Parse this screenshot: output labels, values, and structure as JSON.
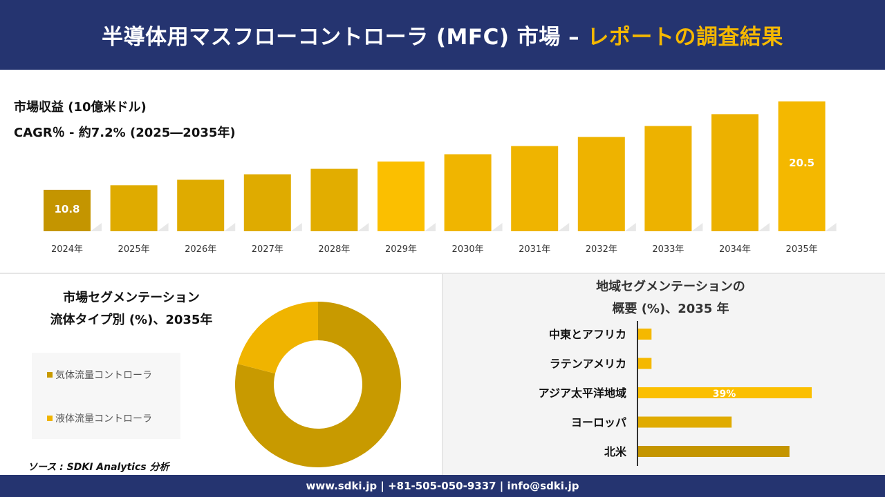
{
  "header": {
    "title_main": "半導体用マスフローコントローラ (MFC) 市場 –",
    "title_highlight": "レポートの調査結果"
  },
  "revenue": {
    "unit_label": "市場収益 (10億米ドル)",
    "cagr_label": "CAGR％ - 約7.2% (2025―2035年)"
  },
  "chart_data": [
    {
      "type": "bar",
      "categories": [
        "2024年",
        "2025年",
        "2026年",
        "2027年",
        "2028年",
        "2029年",
        "2030年",
        "2031年",
        "2032年",
        "2033年",
        "2034年",
        "2035年"
      ],
      "values": [
        10.8,
        11.3,
        11.9,
        12.5,
        13.1,
        13.9,
        14.7,
        15.6,
        16.6,
        17.8,
        19.1,
        20.5
      ],
      "data_labels": {
        "0": "10.8",
        "11": "20.5"
      },
      "colors": [
        "#c49500",
        "#dfab00",
        "#dfab00",
        "#dfab00",
        "#e2ad00",
        "#fbbf00",
        "#f0b500",
        "#efb400",
        "#eeb300",
        "#edb200",
        "#ecb100",
        "#f4b800"
      ]
    },
    {
      "type": "pie",
      "title_line1": "市場セグメンテーション",
      "title_line2": "流体タイプ別 (%)、2035年",
      "categories": [
        "気体流量コントローラ",
        "液体流量コントローラ"
      ],
      "values": [
        79,
        21
      ],
      "colors": [
        "#c89a00",
        "#f0b400"
      ]
    },
    {
      "type": "bar",
      "orientation": "horizontal",
      "title_line1": "地域セグメンテーションの",
      "title_line2": "概要 (%)、2035 年",
      "categories": [
        "中東とアフリカ",
        "ラテンアメリカ",
        "アジア太平洋地域",
        "ヨーロッパ",
        "北米"
      ],
      "values": [
        3,
        3,
        39,
        21,
        34
      ],
      "data_labels": {
        "2": "39%"
      },
      "colors": [
        "#f5b800",
        "#f5b800",
        "#fbbf00",
        "#e0ab00",
        "#c49500"
      ]
    }
  ],
  "source": "ソース : SDKI Analytics 分析",
  "footer": "www.sdki.jp | +81-505-050-9337 | info@sdki.jp"
}
